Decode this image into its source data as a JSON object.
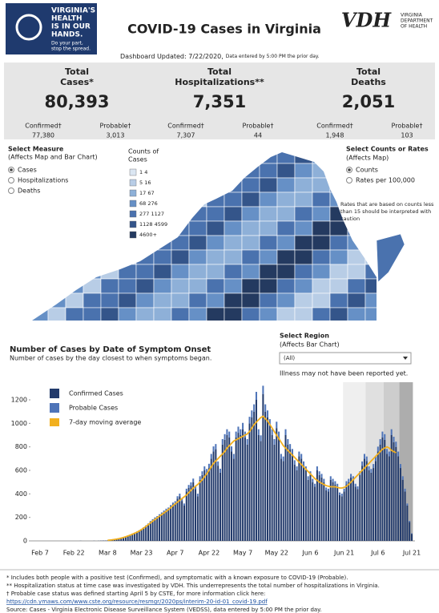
{
  "header": {
    "logo_lines": [
      "VIRGINIA'S",
      "HEALTH",
      "IS IN OUR",
      "HANDS."
    ],
    "logo_sub": [
      "Do your part,",
      "stop the spread."
    ],
    "title": "COVID-19 Cases in Virginia",
    "vdh": "VDH",
    "vdh_sub": [
      "VIRGINIA",
      "DEPARTMENT",
      "OF HEALTH"
    ],
    "updated": "Dashboard Updated: 7/22/2020,",
    "updated_note": "Data entered by 5:00 PM the prior day."
  },
  "totals": [
    {
      "label_lines": [
        "Total",
        "Cases*"
      ],
      "value": "80,393",
      "confirmed_label": "Confirmed†",
      "confirmed": "77,380",
      "probable_label": "Probable†",
      "probable": "3,013"
    },
    {
      "label_lines": [
        "Total",
        "Hospitalizations**"
      ],
      "value": "7,351",
      "confirmed_label": "Confirmed†",
      "confirmed": "7,307",
      "probable_label": "Probable†",
      "probable": "44"
    },
    {
      "label_lines": [
        "Total",
        "Deaths"
      ],
      "value": "2,051",
      "confirmed_label": "Confirmed†",
      "confirmed": "1,948",
      "probable_label": "Probable†",
      "probable": "103"
    }
  ],
  "measure": {
    "title": "Select Measure",
    "subtitle": "(Affects Map and Bar Chart)",
    "options": [
      "Cases",
      "Hospitalizations",
      "Deaths"
    ],
    "selected": 0
  },
  "map_legend": {
    "title_lines": [
      "Counts of",
      "Cases"
    ],
    "items": [
      {
        "label": "1  4",
        "color": "#dbe6f2"
      },
      {
        "label": "5  16",
        "color": "#b8cde6"
      },
      {
        "label": "17  67",
        "color": "#8eb0d8"
      },
      {
        "label": "68  276",
        "color": "#6690c6"
      },
      {
        "label": "277  1127",
        "color": "#4a72ae"
      },
      {
        "label": "1128  4599",
        "color": "#34558a"
      },
      {
        "label": "4600+",
        "color": "#243a60"
      }
    ]
  },
  "rates": {
    "title": "Select Counts or Rates",
    "subtitle": "(Affects Map)",
    "options": [
      "Counts",
      "Rates per 100,000"
    ],
    "selected": 0,
    "note_lines": [
      "Rates that are based on counts less",
      "than 15 should be interpreted with",
      "caution"
    ]
  },
  "region": {
    "title": "Select Region",
    "subtitle": "(Affects Bar Chart)",
    "value": "(All)",
    "note": "Illness may not have been reported yet."
  },
  "chart_data": {
    "type": "bar",
    "stacked": true,
    "title": "Number of Cases by Date of Symptom Onset",
    "subtitle": "Number of cases by the day closest to when symptoms began.",
    "categories": [
      "Feb 7",
      null,
      null,
      null,
      null,
      null,
      null,
      null,
      null,
      null,
      null,
      null,
      null,
      null,
      null,
      "Feb 22",
      null,
      null,
      null,
      null,
      null,
      null,
      null,
      null,
      null,
      null,
      null,
      null,
      null,
      null,
      "Mar 8",
      null,
      null,
      null,
      null,
      null,
      null,
      null,
      null,
      null,
      null,
      null,
      null,
      null,
      null,
      "Mar 23",
      null,
      null,
      null,
      null,
      null,
      null,
      null,
      null,
      null,
      null,
      null,
      null,
      null,
      null,
      "Apr 7",
      null,
      null,
      null,
      null,
      null,
      null,
      null,
      null,
      null,
      null,
      null,
      null,
      null,
      null,
      "Apr 22",
      null,
      null,
      null,
      null,
      null,
      null,
      null,
      null,
      null,
      null,
      null,
      null,
      null,
      null,
      "May 7",
      null,
      null,
      null,
      null,
      null,
      null,
      null,
      null,
      null,
      null,
      null,
      null,
      null,
      null,
      "May 22",
      null,
      null,
      null,
      null,
      null,
      null,
      null,
      null,
      null,
      null,
      null,
      null,
      null,
      null,
      "Jun 6",
      null,
      null,
      null,
      null,
      null,
      null,
      null,
      null,
      null,
      null,
      null,
      null,
      null,
      null,
      "Jun 21",
      null,
      null,
      null,
      null,
      null,
      null,
      null,
      null,
      null,
      null,
      null,
      null,
      null,
      null,
      "Jul 6",
      null,
      null,
      null,
      null,
      null,
      null,
      null,
      null,
      null,
      null,
      null,
      null,
      null,
      null,
      "Jul 21"
    ],
    "series": [
      {
        "name": "Confirmed Cases",
        "color": "#223a6b",
        "values": [
          0,
          0,
          0,
          0,
          0,
          0,
          0,
          0,
          0,
          0,
          0,
          0,
          0,
          0,
          0,
          0,
          0,
          0,
          1,
          0,
          0,
          0,
          0,
          0,
          1,
          0,
          1,
          2,
          3,
          3,
          4,
          6,
          8,
          10,
          14,
          18,
          22,
          28,
          35,
          42,
          50,
          58,
          66,
          75,
          85,
          95,
          110,
          125,
          140,
          160,
          175,
          190,
          200,
          215,
          230,
          245,
          260,
          270,
          290,
          310,
          320,
          360,
          380,
          340,
          300,
          420,
          450,
          470,
          500,
          440,
          380,
          520,
          560,
          600,
          580,
          620,
          700,
          760,
          780,
          640,
          580,
          820,
          860,
          900,
          880,
          760,
          700,
          880,
          920,
          900,
          950,
          880,
          820,
          1000,
          1050,
          1100,
          1200,
          900,
          850,
          1250,
          1100,
          1050,
          980,
          900,
          820,
          960,
          880,
          700,
          680,
          900,
          820,
          780,
          740,
          650,
          600,
          720,
          700,
          640,
          600,
          520,
          560,
          500,
          460,
          600,
          560,
          540,
          500,
          430,
          420,
          520,
          500,
          480,
          460,
          390,
          380,
          420,
          480,
          500,
          540,
          520,
          460,
          440,
          560,
          640,
          700,
          680,
          600,
          580,
          620,
          680,
          760,
          820,
          880,
          860,
          740,
          720,
          900,
          840,
          800,
          720,
          620,
          520,
          420,
          300,
          160,
          60
        ]
      },
      {
        "name": "Probable Cases",
        "color": "#4e74b8",
        "values": [
          0,
          0,
          0,
          0,
          0,
          0,
          0,
          0,
          0,
          0,
          0,
          0,
          0,
          0,
          0,
          0,
          0,
          0,
          0,
          0,
          0,
          0,
          0,
          0,
          0,
          0,
          0,
          0,
          0,
          0,
          0,
          0,
          0,
          1,
          1,
          1,
          2,
          2,
          2,
          3,
          3,
          4,
          4,
          5,
          5,
          6,
          6,
          7,
          8,
          9,
          10,
          10,
          11,
          12,
          12,
          13,
          14,
          14,
          15,
          16,
          18,
          20,
          22,
          20,
          18,
          24,
          26,
          28,
          30,
          26,
          22,
          30,
          32,
          34,
          32,
          36,
          40,
          44,
          44,
          36,
          34,
          46,
          48,
          50,
          50,
          44,
          40,
          50,
          52,
          50,
          54,
          50,
          46,
          56,
          60,
          62,
          68,
          50,
          48,
          70,
          62,
          60,
          56,
          50,
          46,
          54,
          50,
          40,
          38,
          50,
          46,
          44,
          42,
          36,
          34,
          40,
          40,
          36,
          34,
          30,
          32,
          28,
          26,
          34,
          32,
          30,
          28,
          24,
          24,
          30,
          28,
          28,
          26,
          22,
          22,
          24,
          28,
          28,
          30,
          30,
          26,
          24,
          32,
          36,
          40,
          38,
          34,
          32,
          34,
          38,
          42,
          46,
          50,
          48,
          42,
          40,
          50,
          46,
          44,
          40,
          34,
          30,
          24,
          18,
          10,
          4
        ]
      },
      {
        "name": "7-day moving average",
        "color": "#f2b01e",
        "type": "line",
        "values": [
          null,
          null,
          null,
          null,
          null,
          null,
          null,
          null,
          null,
          null,
          null,
          null,
          null,
          null,
          null,
          null,
          null,
          null,
          null,
          null,
          null,
          null,
          null,
          null,
          null,
          null,
          null,
          null,
          null,
          null,
          5,
          7,
          9,
          12,
          15,
          19,
          24,
          29,
          35,
          42,
          49,
          57,
          65,
          74,
          84,
          96,
          109,
          123,
          138,
          153,
          168,
          182,
          196,
          210,
          224,
          238,
          252,
          266,
          282,
          300,
          315,
          330,
          345,
          360,
          375,
          390,
          410,
          430,
          450,
          465,
          480,
          500,
          520,
          545,
          570,
          600,
          630,
          660,
          680,
          700,
          720,
          740,
          760,
          790,
          810,
          830,
          850,
          860,
          870,
          880,
          890,
          900,
          910,
          930,
          960,
          990,
          1010,
          1030,
          1050,
          1060,
          1040,
          1020,
          990,
          960,
          930,
          900,
          870,
          840,
          810,
          790,
          770,
          750,
          730,
          710,
          690,
          670,
          650,
          630,
          610,
          590,
          570,
          550,
          530,
          515,
          500,
          490,
          480,
          470,
          465,
          460,
          460,
          460,
          455,
          450,
          450,
          455,
          465,
          480,
          500,
          520,
          540,
          560,
          580,
          600,
          620,
          640,
          660,
          680,
          700,
          720,
          740,
          760,
          780,
          790,
          800,
          790,
          770,
          760,
          750,
          null,
          null,
          null,
          null,
          null,
          null,
          null
        ]
      }
    ],
    "ylim": [
      0,
      1350
    ],
    "yticks": [
      0,
      200,
      400,
      600,
      800,
      1000,
      1200
    ],
    "grid": false
  },
  "footnotes": [
    "* Includes both people with a positive test (Confirmed), and symptomatic with a known exposure to COVID-19 (Probable).",
    "** Hospitalization status at time case was investigated by VDH. This underrepresents the total number of hospitalizations in Virginia.",
    "† Probable case status was defined starting April 5 by CSTE, for more information click here:",
    "https://cdn.ymaws.com/www.cste.org/resource/resmgr/2020ps/interim-20-id-01_covid-19.pdf",
    "Source:  Cases - Virginia Electronic Disease Surveillance System (VEDSS), data entered by 5:00 PM the prior day."
  ]
}
